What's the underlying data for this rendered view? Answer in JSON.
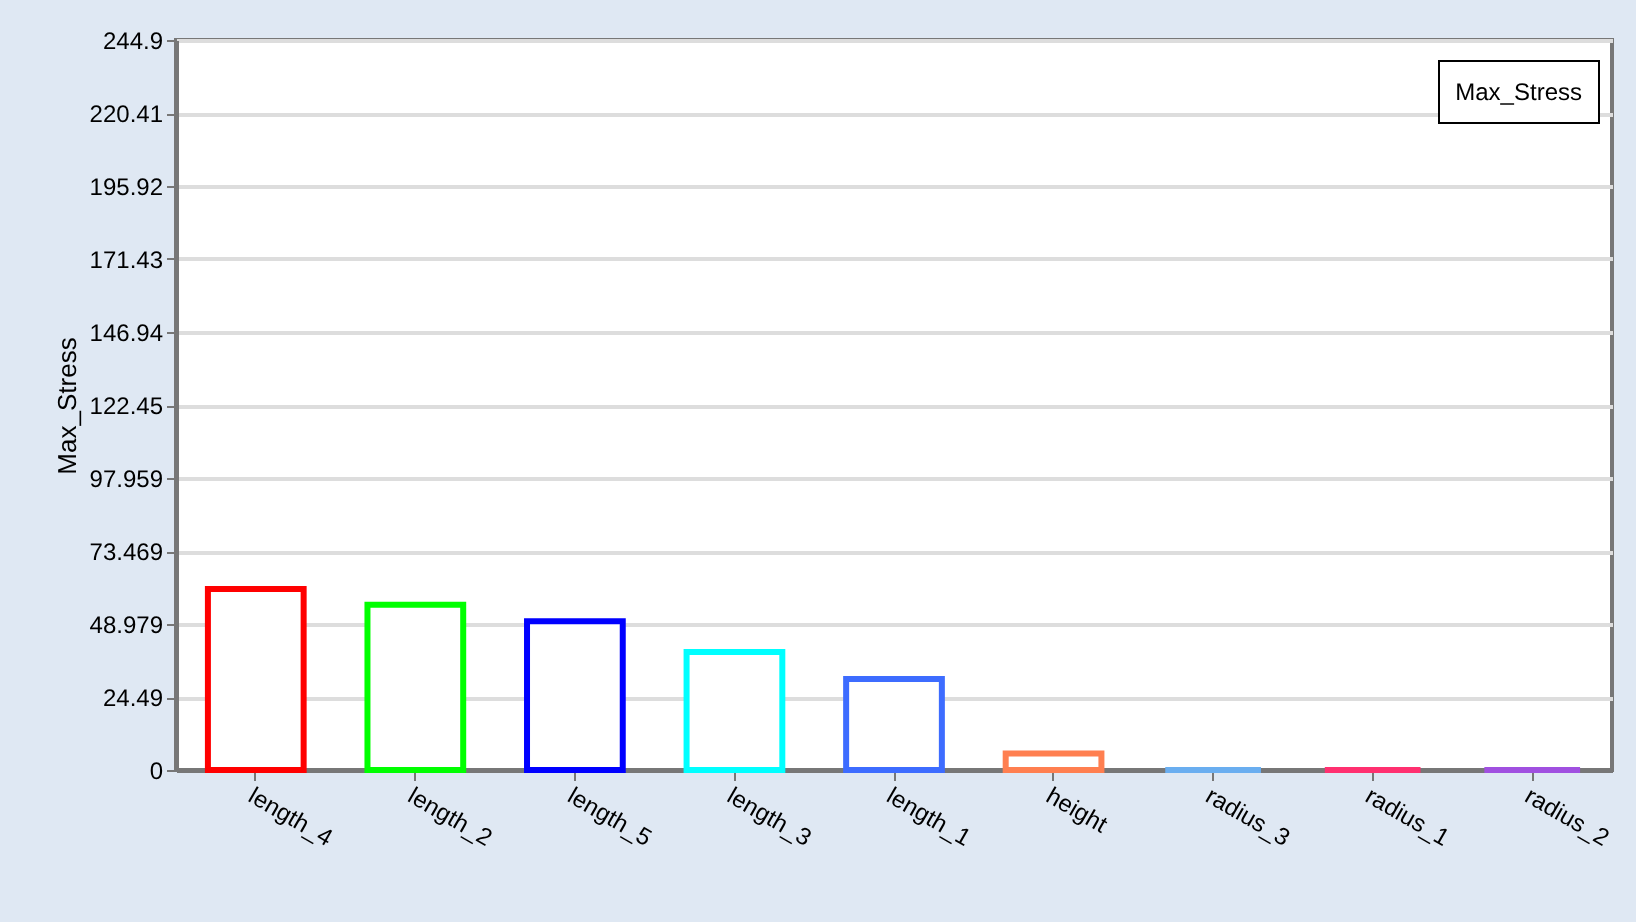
{
  "chart_data": {
    "type": "bar",
    "ylabel": "Max_Stress",
    "categories": [
      "length_4",
      "length_2",
      "length_5",
      "length_3",
      "length_1",
      "height",
      "radius_3",
      "radius_1",
      "radius_2"
    ],
    "series": [
      {
        "name": "Max_Stress",
        "colors": [
          "#ff0000",
          "#00ff00",
          "#0000ff",
          "#00ffff",
          "#3d6cff",
          "#ff7f50",
          "#6aaef0",
          "#ff3070",
          "#a050e0"
        ],
        "values": [
          60.7,
          55.4,
          49.9,
          39.6,
          30.5,
          5.5,
          0,
          0,
          0
        ]
      }
    ],
    "ylim": [
      0,
      244.9
    ],
    "yticks": [
      0,
      24.49,
      48.979,
      73.469,
      97.959,
      122.45,
      146.94,
      171.43,
      195.92,
      220.41,
      244.9
    ],
    "grid": "y",
    "legend": "top right"
  }
}
